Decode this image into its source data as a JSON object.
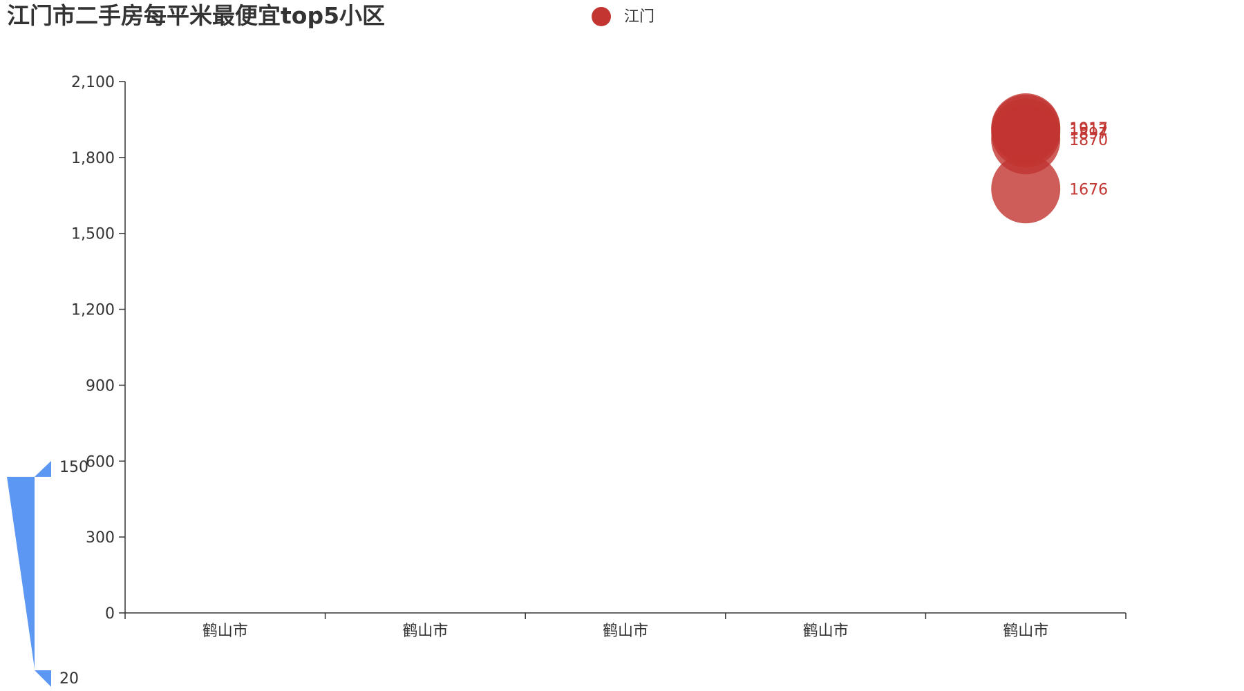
{
  "chart_data": {
    "type": "scatter",
    "title": "江门市二手房每平米最便宜top5小区",
    "legend": {
      "items": [
        {
          "name": "江门",
          "color": "#c23531"
        }
      ],
      "placement": "top-center"
    },
    "categories": [
      "鹤山市",
      "鹤山市",
      "鹤山市",
      "鹤山市",
      "鹤山市"
    ],
    "y_ticks": [
      "0",
      "300",
      "600",
      "900",
      "1,200",
      "1,500",
      "1,800",
      "2,100"
    ],
    "ylim": [
      0,
      2100
    ],
    "series": [
      {
        "name": "江门",
        "color": "#c23531",
        "points": [
          {
            "category_index": 4,
            "value": 1917,
            "label": "1917"
          },
          {
            "category_index": 4,
            "value": 1912,
            "label": "1912"
          },
          {
            "category_index": 4,
            "value": 1897,
            "label": "1897"
          },
          {
            "category_index": 4,
            "value": 1870,
            "label": "1870"
          },
          {
            "category_index": 4,
            "value": 1676,
            "label": "1676"
          }
        ]
      }
    ],
    "visual_map": {
      "min": 20,
      "max": 150,
      "min_label": "20",
      "max_label": "150",
      "color": "#5b97f3",
      "placement": "bottom-left"
    },
    "grid": false
  }
}
